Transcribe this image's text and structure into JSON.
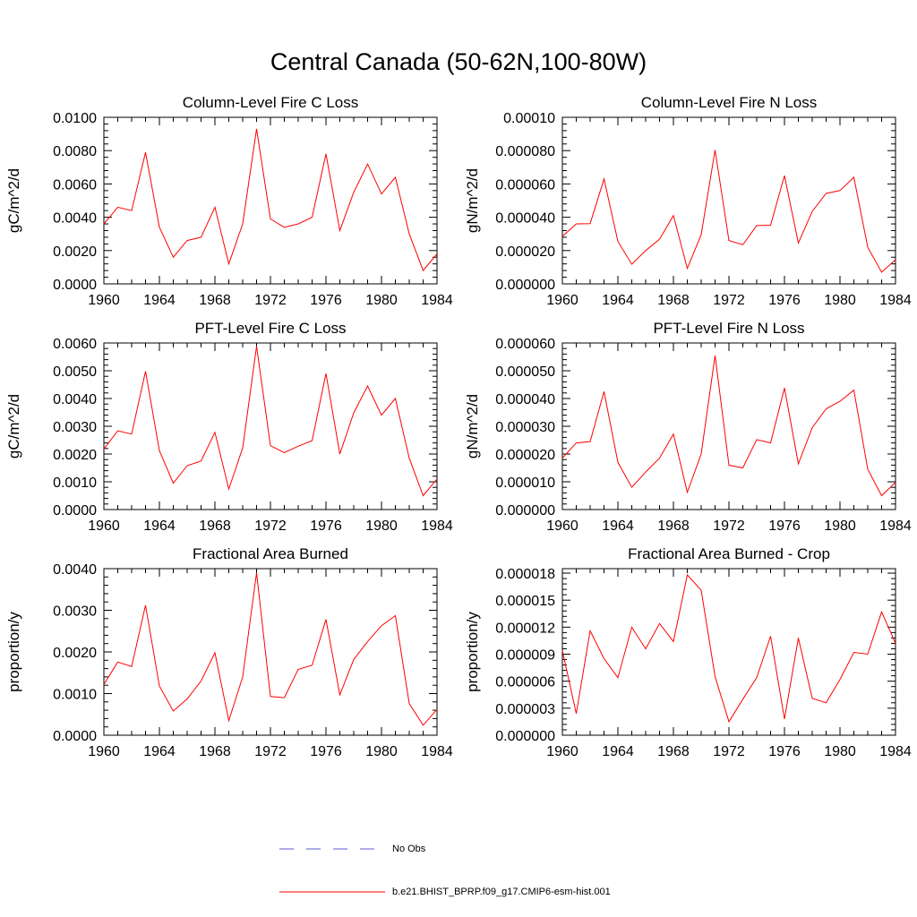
{
  "title": "Central Canada (50-62N,100-80W)",
  "legend": [
    {
      "label": "No Obs",
      "color": "#5b5bd0",
      "dash": true
    },
    {
      "label": "b.e21.BHIST_BPRP.f09_g17.CMIP6-esm-hist.001",
      "color": "#ff0000",
      "dash": false
    }
  ],
  "chart_data": [
    {
      "type": "line",
      "title": "Column-Level Fire C Loss",
      "ylabel": "gC/m^2/d",
      "xlim": [
        1960,
        1984
      ],
      "ylim": [
        0,
        0.01
      ],
      "xticks": [
        1960,
        1964,
        1968,
        1972,
        1976,
        1980,
        1984
      ],
      "yticks": [
        "0.0000",
        "0.0020",
        "0.0040",
        "0.0060",
        "0.0080",
        "0.0100"
      ],
      "series": [
        {
          "color": "#ff0000",
          "x": [
            1960,
            1961,
            1962,
            1963,
            1964,
            1965,
            1966,
            1967,
            1968,
            1969,
            1970,
            1971,
            1972,
            1973,
            1974,
            1975,
            1976,
            1977,
            1978,
            1979,
            1980,
            1981,
            1982,
            1983,
            1984
          ],
          "values": [
            0.0036,
            0.0046,
            0.0044,
            0.0079,
            0.0034,
            0.0016,
            0.0026,
            0.0028,
            0.0046,
            0.0012,
            0.0036,
            0.0093,
            0.0039,
            0.0034,
            0.0036,
            0.004,
            0.0078,
            0.0032,
            0.0055,
            0.0072,
            0.0054,
            0.0064,
            0.003,
            0.0008,
            0.0018
          ]
        }
      ]
    },
    {
      "type": "line",
      "title": "Column-Level Fire N Loss",
      "ylabel": "gN/m^2/d",
      "xlim": [
        1960,
        1984
      ],
      "ylim": [
        0,
        0.0001
      ],
      "xticks": [
        1960,
        1964,
        1968,
        1972,
        1976,
        1980,
        1984
      ],
      "yticks": [
        "0.000000",
        "0.000020",
        "0.000040",
        "0.000060",
        "0.000080",
        "0.00010"
      ],
      "series": [
        {
          "color": "#ff0000",
          "x": [
            1960,
            1961,
            1962,
            1963,
            1964,
            1965,
            1966,
            1967,
            1968,
            1969,
            1970,
            1971,
            1972,
            1973,
            1974,
            1975,
            1976,
            1977,
            1978,
            1979,
            1980,
            1981,
            1982,
            1983,
            1984
          ],
          "values": [
            2.85e-05,
            3.6e-05,
            3.62e-05,
            6.3e-05,
            2.55e-05,
            1.18e-05,
            2e-05,
            2.68e-05,
            4.1e-05,
            9.3e-06,
            2.95e-05,
            8.03e-05,
            2.6e-05,
            2.35e-05,
            3.5e-05,
            3.52e-05,
            6.5e-05,
            2.45e-05,
            4.35e-05,
            5.43e-05,
            5.6e-05,
            6.4e-05,
            2.2e-05,
            7e-06,
            1.45e-05
          ]
        }
      ]
    },
    {
      "type": "line",
      "title": "PFT-Level Fire C Loss",
      "ylabel": "gC/m^2/d",
      "xlim": [
        1960,
        1984
      ],
      "ylim": [
        0,
        0.006
      ],
      "xticks": [
        1960,
        1964,
        1968,
        1972,
        1976,
        1980,
        1984
      ],
      "yticks": [
        "0.0000",
        "0.0010",
        "0.0020",
        "0.0030",
        "0.0040",
        "0.0050",
        "0.0060"
      ],
      "series": [
        {
          "color": "#ff0000",
          "x": [
            1960,
            1961,
            1962,
            1963,
            1964,
            1965,
            1966,
            1967,
            1968,
            1969,
            1970,
            1971,
            1972,
            1973,
            1974,
            1975,
            1976,
            1977,
            1978,
            1979,
            1980,
            1981,
            1982,
            1983,
            1984
          ],
          "values": [
            0.00218,
            0.00284,
            0.00272,
            0.00498,
            0.00212,
            0.00095,
            0.00158,
            0.00175,
            0.00278,
            0.00074,
            0.00222,
            0.00588,
            0.0023,
            0.00205,
            0.00228,
            0.00248,
            0.0049,
            0.002,
            0.00348,
            0.00445,
            0.0034,
            0.004,
            0.00185,
            0.0005,
            0.0011
          ]
        }
      ]
    },
    {
      "type": "line",
      "title": "PFT-Level Fire N Loss",
      "ylabel": "gN/m^2/d",
      "xlim": [
        1960,
        1984
      ],
      "ylim": [
        0,
        6e-05
      ],
      "xticks": [
        1960,
        1964,
        1968,
        1972,
        1976,
        1980,
        1984
      ],
      "yticks": [
        "0.000000",
        "0.000010",
        "0.000020",
        "0.000030",
        "0.000040",
        "0.000050",
        "0.000060"
      ],
      "series": [
        {
          "color": "#ff0000",
          "x": [
            1960,
            1961,
            1962,
            1963,
            1964,
            1965,
            1966,
            1967,
            1968,
            1969,
            1970,
            1971,
            1972,
            1973,
            1974,
            1975,
            1976,
            1977,
            1978,
            1979,
            1980,
            1981,
            1982,
            1983,
            1984
          ],
          "values": [
            1.85e-05,
            2.4e-05,
            2.45e-05,
            4.25e-05,
            1.7e-05,
            8e-06,
            1.35e-05,
            1.85e-05,
            2.72e-05,
            6.2e-06,
            2e-05,
            5.55e-05,
            1.6e-05,
            1.5e-05,
            2.52e-05,
            2.4e-05,
            4.38e-05,
            1.65e-05,
            2.95e-05,
            3.63e-05,
            3.9e-05,
            4.3e-05,
            1.45e-05,
            5e-06,
            9.8e-06
          ]
        }
      ]
    },
    {
      "type": "line",
      "title": "Fractional Area Burned",
      "ylabel": "proportion/y",
      "xlim": [
        1960,
        1984
      ],
      "ylim": [
        0,
        0.004
      ],
      "xticks": [
        1960,
        1964,
        1968,
        1972,
        1976,
        1980,
        1984
      ],
      "yticks": [
        "0.0000",
        "0.0010",
        "0.0020",
        "0.0030",
        "0.0040"
      ],
      "series": [
        {
          "color": "#ff0000",
          "x": [
            1960,
            1961,
            1962,
            1963,
            1964,
            1965,
            1966,
            1967,
            1968,
            1969,
            1970,
            1971,
            1972,
            1973,
            1974,
            1975,
            1976,
            1977,
            1978,
            1979,
            1980,
            1981,
            1982,
            1983,
            1984
          ],
          "values": [
            0.00122,
            0.00176,
            0.00165,
            0.00312,
            0.00118,
            0.00058,
            0.00087,
            0.0013,
            0.00198,
            0.00035,
            0.0014,
            0.0039,
            0.00093,
            0.0009,
            0.00158,
            0.00168,
            0.00278,
            0.00097,
            0.00182,
            0.00225,
            0.00263,
            0.00287,
            0.00076,
            0.00024,
            0.00062
          ]
        }
      ]
    },
    {
      "type": "line",
      "title": "Fractional Area Burned - Crop",
      "ylabel": "proportion/y",
      "xlim": [
        1960,
        1984
      ],
      "ylim": [
        0,
        1.85e-05
      ],
      "xticks": [
        1960,
        1964,
        1968,
        1972,
        1976,
        1980,
        1984
      ],
      "yticks": [
        "0.000000",
        "0.000003",
        "0.000006",
        "0.000009",
        "0.000012",
        "0.000015",
        "0.000018"
      ],
      "series": [
        {
          "color": "#ff0000",
          "x": [
            1960,
            1961,
            1962,
            1963,
            1964,
            1965,
            1966,
            1967,
            1968,
            1969,
            1970,
            1971,
            1972,
            1973,
            1974,
            1975,
            1976,
            1977,
            1978,
            1979,
            1980,
            1981,
            1982,
            1983,
            1984
          ],
          "values": [
            9.4e-06,
            2.4e-06,
            1.16e-05,
            8.5e-06,
            6.4e-06,
            1.2e-05,
            9.6e-06,
            1.24e-05,
            1.04e-05,
            1.78e-05,
            1.61e-05,
            6.5e-06,
            1.5e-06,
            4e-06,
            6.4e-06,
            1.1e-05,
            1.8e-06,
            1.08e-05,
            4.1e-06,
            3.6e-06,
            6.2e-06,
            9.2e-06,
            9e-06,
            1.37e-05,
            1.02e-05
          ]
        }
      ]
    }
  ]
}
